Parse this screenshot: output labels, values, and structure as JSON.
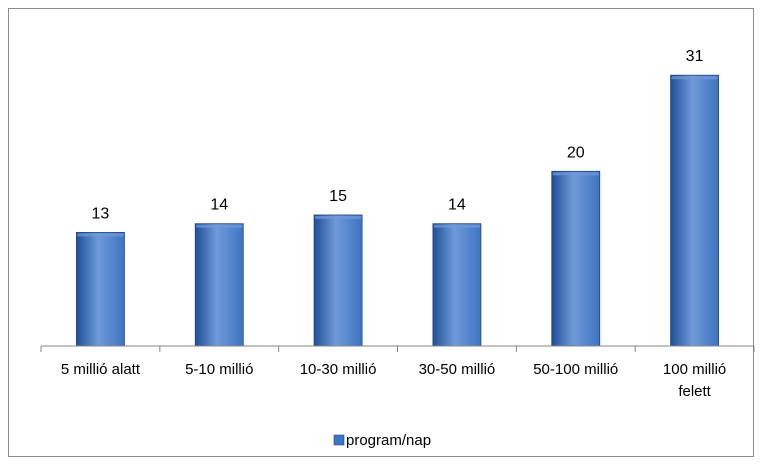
{
  "chart_data": {
    "type": "bar",
    "categories": [
      [
        "5 millió alatt"
      ],
      [
        "5-10 millió"
      ],
      [
        "10-30 millió"
      ],
      [
        "30-50 millió"
      ],
      [
        "50-100 millió"
      ],
      [
        "100 millió",
        "felett"
      ]
    ],
    "series": [
      {
        "name": "program/nap",
        "values": [
          13,
          14,
          15,
          14,
          20,
          31
        ]
      }
    ],
    "data_labels": [
      "13",
      "14",
      "15",
      "14",
      "20",
      "31"
    ],
    "ylim": [
      0,
      34
    ],
    "y_axis_visible": false,
    "grid": false,
    "legend_position": "bottom",
    "colors": {
      "bar_fill": "#3f74c2",
      "bar_fill_light": "#6f9ad9",
      "bar_fill_dark": "#1f4f98",
      "bar_stroke": "#1f4378",
      "axis": "#868686"
    }
  }
}
